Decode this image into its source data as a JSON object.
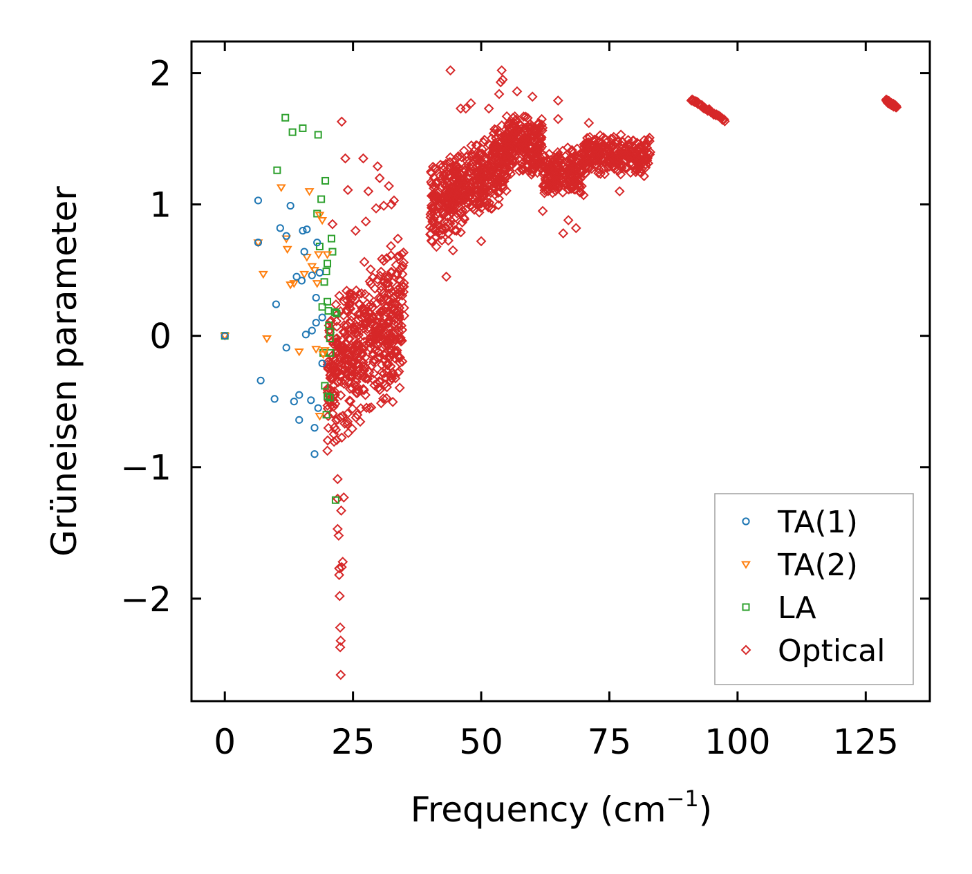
{
  "chart_data": {
    "type": "scatter",
    "xlabel": "Frequency (cm",
    "xlabel_superscript": "−1",
    "xlabel_suffix": ")",
    "ylabel": "Grüneisen parameter",
    "xlim": [
      -6.5,
      137.5
    ],
    "ylim": [
      -2.78,
      2.24
    ],
    "xticks": [
      0,
      25,
      50,
      75,
      100,
      125
    ],
    "xtick_labels": [
      "0",
      "25",
      "50",
      "75",
      "100",
      "125"
    ],
    "yticks": [
      2,
      1,
      0,
      -1,
      -2
    ],
    "ytick_labels": [
      "2",
      "1",
      "0",
      "−1",
      "−2"
    ],
    "legend_position": "lower-right",
    "series": [
      {
        "name": "TA(1)",
        "label": "TA(1)",
        "color": "#1f77b4",
        "marker": "circle",
        "points": [
          [
            0,
            0
          ],
          [
            6.5,
            1.03
          ],
          [
            6.5,
            0.71
          ],
          [
            7,
            -0.34
          ],
          [
            9.7,
            -0.48
          ],
          [
            10,
            0.24
          ],
          [
            10.8,
            0.82
          ],
          [
            12,
            0.76
          ],
          [
            12,
            -0.09
          ],
          [
            12.8,
            0.99
          ],
          [
            13.5,
            -0.5
          ],
          [
            14,
            0.45
          ],
          [
            14.5,
            -0.45
          ],
          [
            14.5,
            -0.64
          ],
          [
            15,
            0.42
          ],
          [
            15.2,
            0.8
          ],
          [
            15.5,
            0.64
          ],
          [
            15.8,
            0.01
          ],
          [
            16,
            0.81
          ],
          [
            16.8,
            -0.49
          ],
          [
            17,
            0.46
          ],
          [
            17,
            0.04
          ],
          [
            17.5,
            -0.7
          ],
          [
            17.5,
            -0.9
          ],
          [
            17.8,
            0.1
          ],
          [
            17.8,
            0.29
          ],
          [
            18,
            0.71
          ],
          [
            18.2,
            -0.55
          ],
          [
            18.5,
            0.48
          ],
          [
            19,
            0.14
          ],
          [
            19,
            -0.21
          ]
        ]
      },
      {
        "name": "TA(2)",
        "label": "TA(2)",
        "color": "#ff7f0e",
        "marker": "triangle-down",
        "points": [
          [
            0,
            0
          ],
          [
            6.5,
            0.71
          ],
          [
            7.5,
            0.47
          ],
          [
            8.2,
            -0.02
          ],
          [
            11,
            1.13
          ],
          [
            12,
            0.74
          ],
          [
            12.2,
            0.66
          ],
          [
            12.8,
            0.39
          ],
          [
            13.5,
            0.4
          ],
          [
            14.5,
            -0.12
          ],
          [
            15.5,
            0.47
          ],
          [
            16,
            0.6
          ],
          [
            16.5,
            1.1
          ],
          [
            17,
            0.53
          ],
          [
            17.5,
            0.5
          ],
          [
            17.8,
            -0.1
          ],
          [
            18,
            0.4
          ],
          [
            18.3,
            0.62
          ],
          [
            18.5,
            0.92
          ],
          [
            18.5,
            -0.61
          ],
          [
            19,
            0.88
          ],
          [
            19.2,
            -0.14
          ],
          [
            19.5,
            -0.11
          ],
          [
            20,
            0.62
          ]
        ]
      },
      {
        "name": "LA",
        "label": "LA",
        "color": "#2ca02c",
        "marker": "square",
        "points": [
          [
            0,
            0
          ],
          [
            10.2,
            1.26
          ],
          [
            11.8,
            1.66
          ],
          [
            13.2,
            1.55
          ],
          [
            15.2,
            1.58
          ],
          [
            18.2,
            1.53
          ],
          [
            18,
            0.93
          ],
          [
            18.5,
            0.68
          ],
          [
            18.8,
            1.04
          ],
          [
            19,
            0.22
          ],
          [
            19.2,
            -0.13
          ],
          [
            19.4,
            0.41
          ],
          [
            19.5,
            -0.38
          ],
          [
            19.6,
            1.18
          ],
          [
            19.8,
            0.49
          ],
          [
            19.8,
            -0.6
          ],
          [
            20,
            0.26
          ],
          [
            20,
            0.55
          ],
          [
            20,
            -0.46
          ],
          [
            20.2,
            0.19
          ],
          [
            20.3,
            0.08
          ],
          [
            20.5,
            -0.02
          ],
          [
            20.5,
            -0.47
          ],
          [
            20.6,
            -0.13
          ],
          [
            20.6,
            0.03
          ],
          [
            20.8,
            0.74
          ],
          [
            21,
            0.64
          ],
          [
            21.5,
            0.18
          ],
          [
            21.6,
            -1.25
          ],
          [
            21.8,
            0.17
          ]
        ]
      },
      {
        "name": "Optical",
        "label": "Optical",
        "color": "#d62728",
        "marker": "diamond",
        "points": [],
        "clusters": [
          {
            "x": [
              20,
              35
            ],
            "y": [
              -0.7,
              0.6
            ],
            "slope": 0.03,
            "count": 520,
            "note": "dense low-frequency optical branch"
          },
          {
            "x": [
              40,
              47
            ],
            "y": [
              0.7,
              1.4
            ],
            "slope": 0.02,
            "count": 230
          },
          {
            "x": [
              47,
              55
            ],
            "y": [
              0.9,
              1.55
            ],
            "slope": 0.03,
            "count": 260
          },
          {
            "x": [
              55,
              62
            ],
            "y": [
              1.2,
              1.7
            ],
            "slope": 0,
            "count": 220
          },
          {
            "x": [
              62,
              70
            ],
            "y": [
              1.05,
              1.45
            ],
            "slope": 0,
            "count": 200
          },
          {
            "x": [
              70,
              83
            ],
            "y": [
              1.2,
              1.55
            ],
            "slope": 0,
            "count": 260
          }
        ],
        "outliers": [
          [
            21,
            0.85
          ],
          [
            21.5,
            -0.45
          ],
          [
            22,
            -1.09
          ],
          [
            22,
            -1.24
          ],
          [
            22,
            -1.47
          ],
          [
            22.2,
            -1.52
          ],
          [
            22.3,
            -1.77
          ],
          [
            22.3,
            -1.82
          ],
          [
            22.4,
            -1.98
          ],
          [
            22.5,
            -2.22
          ],
          [
            22.5,
            -2.37
          ],
          [
            22.6,
            -2.32
          ],
          [
            22.6,
            -2.58
          ],
          [
            22.7,
            -1.33
          ],
          [
            22.8,
            -1.76
          ],
          [
            22.8,
            1.63
          ],
          [
            23.2,
            -1.23
          ],
          [
            23.5,
            1.35
          ],
          [
            23,
            -1.72
          ],
          [
            24,
            1.11
          ],
          [
            25.5,
            0.8
          ],
          [
            27,
            1.35
          ],
          [
            27.5,
            0.87
          ],
          [
            28,
            1.1
          ],
          [
            29.5,
            0.97
          ],
          [
            29.8,
            1.29
          ],
          [
            30.2,
            1.2
          ],
          [
            31,
            0.99
          ],
          [
            31,
            0.57
          ],
          [
            32,
            1.14
          ],
          [
            32.5,
            1.0
          ],
          [
            33,
            1.03
          ],
          [
            43.2,
            0.45
          ],
          [
            44,
            2.02
          ],
          [
            44.5,
            0.65
          ],
          [
            45,
            1.13
          ],
          [
            46,
            1.73
          ],
          [
            47,
            1.73
          ],
          [
            48,
            1.77
          ],
          [
            50,
            0.72
          ],
          [
            51.5,
            1.73
          ],
          [
            53.5,
            1.84
          ],
          [
            53.8,
            1.93
          ],
          [
            54,
            2.02
          ],
          [
            54.2,
            1.95
          ],
          [
            55,
            1.67
          ],
          [
            57,
            1.86
          ],
          [
            59.5,
            1.61
          ],
          [
            60,
            1.82
          ],
          [
            62,
            0.95
          ],
          [
            65,
            1.79
          ],
          [
            65,
            1.65
          ],
          [
            66,
            0.78
          ],
          [
            67,
            0.88
          ],
          [
            68.5,
            0.82
          ],
          [
            69,
            1.15
          ],
          [
            71,
            1.62
          ],
          [
            76,
            1.27
          ],
          [
            77,
            1.1
          ]
        ],
        "tail_segments": [
          {
            "x": [
              91,
              97.5
            ],
            "y": [
              1.8,
              1.64
            ]
          },
          {
            "x": [
              129,
              131
            ],
            "y": [
              1.79,
              1.74
            ]
          }
        ]
      }
    ]
  }
}
